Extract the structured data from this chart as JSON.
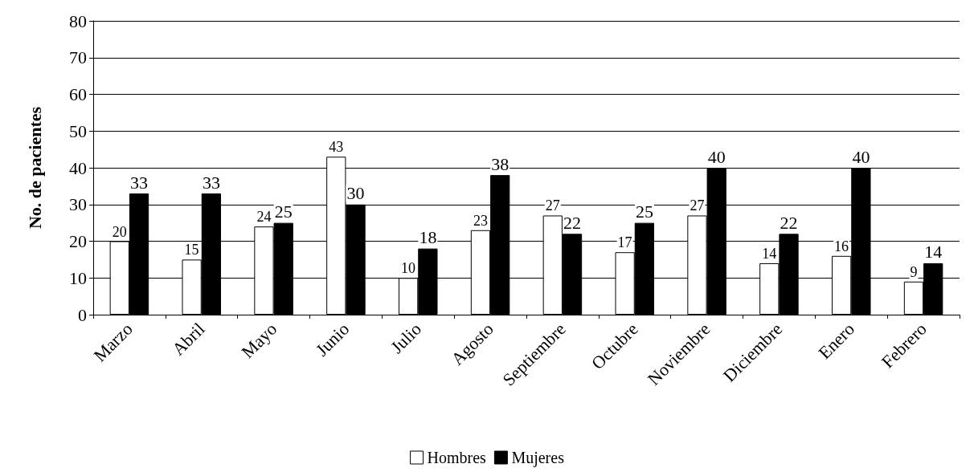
{
  "chart_data": {
    "type": "bar",
    "ylabel": "No. de pacientes",
    "categories": [
      "Marzo",
      "Abril",
      "Mayo",
      "Junio",
      "Julio",
      "Agosto",
      "Septiembre",
      "Octubre",
      "Noviembre",
      "Diciembre",
      "Enero",
      "Febrero"
    ],
    "series": [
      {
        "name": "Hombres",
        "color": "#ffffff",
        "values": [
          20,
          15,
          24,
          43,
          10,
          23,
          27,
          17,
          27,
          14,
          16,
          9
        ]
      },
      {
        "name": "Mujeres",
        "color": "#000000",
        "values": [
          33,
          33,
          25,
          30,
          18,
          38,
          22,
          25,
          40,
          22,
          40,
          14
        ]
      }
    ],
    "ylim": [
      0,
      80
    ],
    "yticks": [
      0,
      10,
      20,
      30,
      40,
      50,
      60,
      70,
      80
    ],
    "grid": "y",
    "legend": "bottom",
    "data_labels": true
  }
}
